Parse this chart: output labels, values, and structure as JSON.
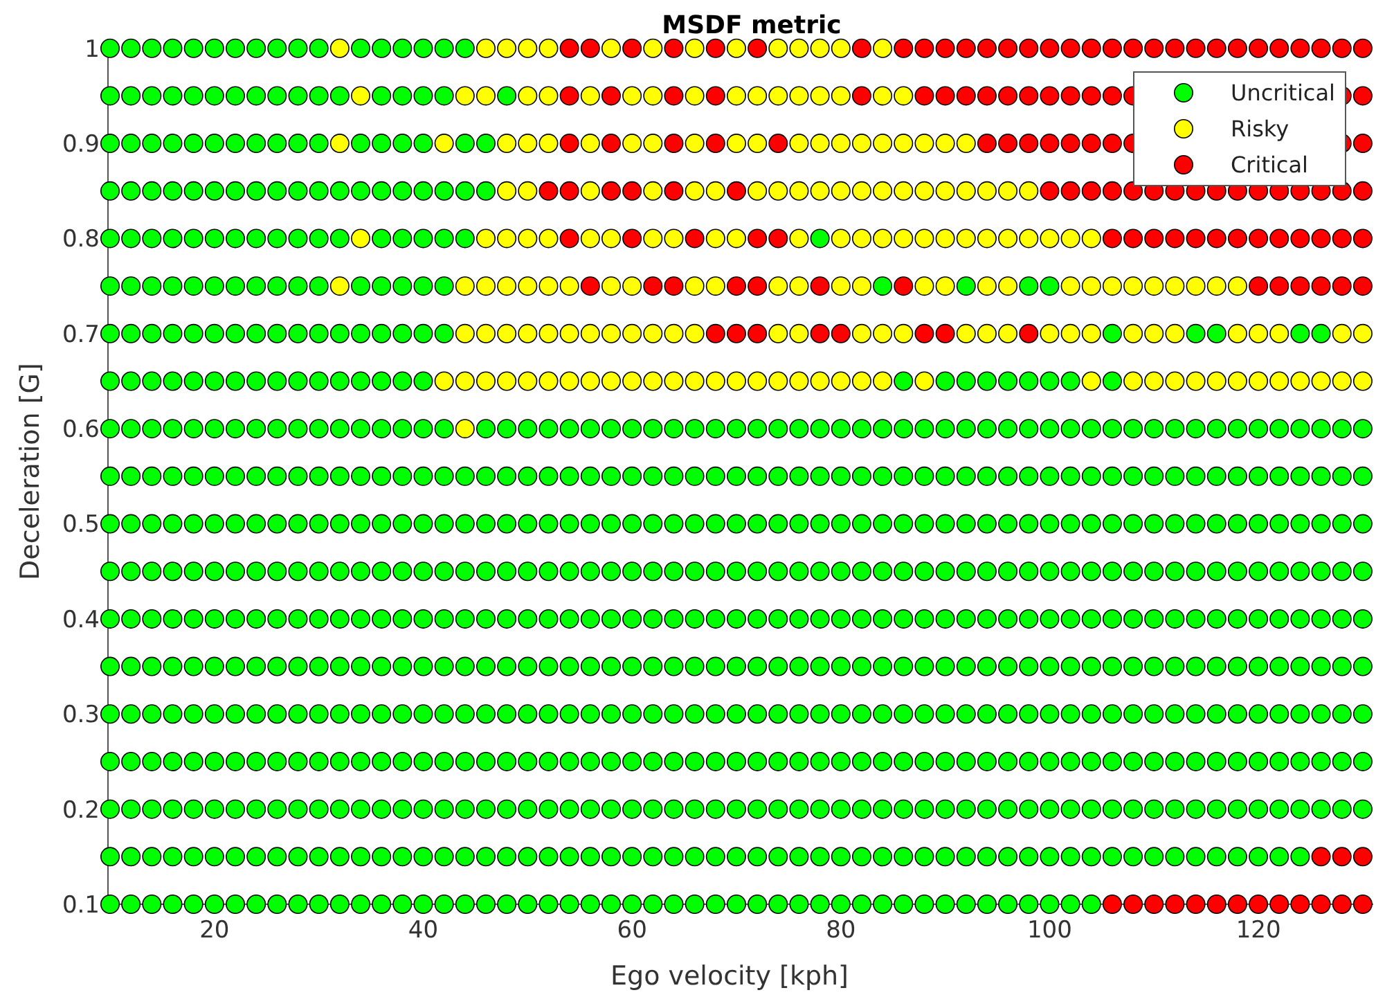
{
  "chart_data": {
    "type": "scatter",
    "title": "MSDF metric",
    "xlabel": "Ego velocity [kph]",
    "ylabel": "Deceleration [G]",
    "xlim": [
      9.8,
      131
    ],
    "xticks": [
      20,
      40,
      60,
      80,
      100,
      120
    ],
    "ylim": [
      0.1,
      1.01
    ],
    "yticks": [
      0.1,
      0.2,
      0.3,
      0.4,
      0.5,
      0.6,
      0.7,
      0.8,
      0.9,
      1
    ],
    "marker": "circle",
    "legend": "top right",
    "series": [
      {
        "name": "Uncritical",
        "color": "#00ff00",
        "x": [
          10,
          12,
          14,
          16,
          18,
          20,
          22,
          24,
          26,
          28,
          30,
          34,
          36,
          38,
          40,
          42,
          44,
          10,
          12,
          14,
          16,
          18,
          20,
          22,
          24,
          26,
          28,
          30,
          32,
          36,
          38,
          40,
          42,
          48,
          10,
          12,
          14,
          16,
          18,
          20,
          22,
          24,
          26,
          28,
          30,
          34,
          36,
          38,
          40,
          44,
          46,
          10,
          12,
          14,
          16,
          18,
          20,
          22,
          24,
          26,
          28,
          30,
          32,
          34,
          36,
          38,
          40,
          42,
          44,
          46,
          10,
          12,
          14,
          16,
          18,
          20,
          22,
          24,
          26,
          28,
          30,
          32,
          36,
          38,
          40,
          42,
          44,
          78,
          10,
          12,
          14,
          16,
          18,
          20,
          22,
          24,
          26,
          28,
          30,
          34,
          36,
          38,
          40,
          42,
          84,
          92,
          98,
          100,
          10,
          12,
          14,
          16,
          18,
          20,
          22,
          24,
          26,
          28,
          30,
          32,
          34,
          36,
          38,
          40,
          42,
          106,
          114,
          116,
          124,
          126,
          10,
          12,
          14,
          16,
          18,
          20,
          22,
          24,
          26,
          28,
          30,
          32,
          34,
          36,
          38,
          40,
          86,
          90,
          92,
          94,
          96,
          98,
          100,
          102,
          106,
          10,
          12,
          14,
          16,
          18,
          20,
          22,
          24,
          26,
          28,
          30,
          32,
          34,
          36,
          38,
          40,
          42,
          46,
          48,
          50,
          52,
          54,
          56,
          58,
          60,
          62,
          64,
          66,
          68,
          70,
          72,
          74,
          76,
          78,
          80,
          82,
          84,
          86,
          88,
          90,
          92,
          94,
          96,
          98,
          100,
          102,
          104,
          106,
          108,
          110,
          112,
          114,
          116,
          118,
          120,
          122,
          124,
          126,
          128,
          130,
          10,
          12,
          14,
          16,
          18,
          20,
          22,
          24,
          26,
          28,
          30,
          32,
          34,
          36,
          38,
          40,
          42,
          44,
          46,
          48,
          50,
          52,
          54,
          56,
          58,
          60,
          62,
          64,
          66,
          68,
          70,
          72,
          74,
          76,
          78,
          80,
          82,
          84,
          86,
          88,
          90,
          92,
          94,
          96,
          98,
          100,
          102,
          104,
          106,
          108,
          110,
          112,
          114,
          116,
          118,
          120,
          122,
          124,
          126,
          128,
          130,
          10,
          12,
          14,
          16,
          18,
          20,
          22,
          24,
          26,
          28,
          30,
          32,
          34,
          36,
          38,
          40,
          42,
          44,
          46,
          48,
          50,
          52,
          54,
          56,
          58,
          60,
          62,
          64,
          66,
          68,
          70,
          72,
          74,
          76,
          78,
          80,
          82,
          84,
          86,
          88,
          90,
          92,
          94,
          96,
          98,
          100,
          102,
          104,
          106,
          108,
          110,
          112,
          114,
          116,
          118,
          120,
          122,
          124,
          126,
          128,
          130,
          10,
          12,
          14,
          16,
          18,
          20,
          22,
          24,
          26,
          28,
          30,
          32,
          34,
          36,
          38,
          40,
          42,
          44,
          46,
          48,
          50,
          52,
          54,
          56,
          58,
          60,
          62,
          64,
          66,
          68,
          70,
          72,
          74,
          76,
          78,
          80,
          82,
          84,
          86,
          88,
          90,
          92,
          94,
          96,
          98,
          100,
          102,
          104,
          106,
          108,
          110,
          112,
          114,
          116,
          118,
          120,
          122,
          124,
          126,
          128,
          130,
          10,
          12,
          14,
          16,
          18,
          20,
          22,
          24,
          26,
          28,
          30,
          32,
          34,
          36,
          38,
          40,
          42,
          44,
          46,
          48,
          50,
          52,
          54,
          56,
          58,
          60,
          62,
          64,
          66,
          68,
          70,
          72,
          74,
          76,
          78,
          80,
          82,
          84,
          86,
          88,
          90,
          92,
          94,
          96,
          98,
          100,
          102,
          104,
          106,
          108,
          110,
          112,
          114,
          116,
          118,
          120,
          122,
          124,
          126,
          128,
          130,
          10,
          12,
          14,
          16,
          18,
          20,
          22,
          24,
          26,
          28,
          30,
          32,
          34,
          36,
          38,
          40,
          42,
          44,
          46,
          48,
          50,
          52,
          54,
          56,
          58,
          60,
          62,
          64,
          66,
          68,
          70,
          72,
          74,
          76,
          78,
          80,
          82,
          84,
          86,
          88,
          90,
          92,
          94,
          96,
          98,
          100,
          102,
          104,
          106,
          108,
          110,
          112,
          114,
          116,
          118,
          120,
          122,
          124,
          126,
          128,
          130,
          10,
          12,
          14,
          16,
          18,
          20,
          22,
          24,
          26,
          28,
          30,
          32,
          34,
          36,
          38,
          40,
          42,
          44,
          46,
          48,
          50,
          52,
          54,
          56,
          58,
          60,
          62,
          64,
          66,
          68,
          70,
          72,
          74,
          76,
          78,
          80,
          82,
          84,
          86,
          88,
          90,
          92,
          94,
          96,
          98,
          100,
          102,
          104,
          106,
          108,
          110,
          112,
          114,
          116,
          118,
          120,
          122,
          124,
          126,
          128,
          130,
          10,
          12,
          14,
          16,
          18,
          20,
          22,
          24,
          26,
          28,
          30,
          32,
          34,
          36,
          38,
          40,
          42,
          44,
          46,
          48,
          50,
          52,
          54,
          56,
          58,
          60,
          62,
          64,
          66,
          68,
          70,
          72,
          74,
          76,
          78,
          80,
          82,
          84,
          86,
          88,
          90,
          92,
          94,
          96,
          98,
          100,
          102,
          104,
          106,
          108,
          110,
          112,
          114,
          116,
          118,
          120,
          122,
          124,
          126,
          128,
          130,
          10,
          12,
          14,
          16,
          18,
          20,
          22,
          24,
          26,
          28,
          30,
          32,
          34,
          36,
          38,
          40,
          42,
          44,
          46,
          48,
          50,
          52,
          54,
          56,
          58,
          60,
          62,
          64,
          66,
          68,
          70,
          72,
          74,
          76,
          78,
          80,
          82,
          84,
          86,
          88,
          90,
          92,
          94,
          96,
          98,
          100,
          102,
          104,
          106,
          108,
          110,
          112,
          114,
          116,
          118,
          120,
          122,
          124,
          126,
          128,
          130,
          10,
          12,
          14,
          16,
          18,
          20,
          22,
          24,
          26,
          28,
          30,
          32,
          34,
          36,
          38,
          40,
          42,
          44,
          46,
          48,
          50,
          52,
          54,
          56,
          58,
          60,
          62,
          64,
          66,
          68,
          70,
          72,
          74,
          76,
          78,
          80,
          82,
          84,
          86,
          88,
          90,
          92,
          94,
          96,
          98,
          100,
          102,
          104,
          106,
          108,
          110,
          112,
          114,
          116,
          118,
          120,
          122,
          124,
          10,
          12,
          14,
          16,
          18,
          20,
          22,
          24,
          26,
          28,
          30,
          32,
          34,
          36,
          38,
          40,
          42,
          44,
          46,
          48,
          50,
          52,
          54,
          56,
          58,
          60,
          62,
          64,
          66,
          68,
          70,
          72,
          74,
          76,
          78,
          80,
          82,
          84,
          86,
          88,
          90,
          92,
          94,
          96,
          98,
          100,
          102,
          104
        ],
        "values": [
          1,
          1,
          1,
          1,
          1,
          1,
          1,
          1,
          1,
          1,
          1,
          1,
          1,
          1,
          1,
          1,
          1,
          0.95,
          0.95,
          0.95,
          0.95,
          0.95,
          0.95,
          0.95,
          0.95,
          0.95,
          0.95,
          0.95,
          0.95,
          0.95,
          0.95,
          0.95,
          0.95,
          0.95,
          0.9,
          0.9,
          0.9,
          0.9,
          0.9,
          0.9,
          0.9,
          0.9,
          0.9,
          0.9,
          0.9,
          0.9,
          0.9,
          0.9,
          0.9,
          0.9,
          0.9,
          0.85,
          0.85,
          0.85,
          0.85,
          0.85,
          0.85,
          0.85,
          0.85,
          0.85,
          0.85,
          0.85,
          0.85,
          0.85,
          0.85,
          0.85,
          0.85,
          0.85,
          0.85,
          0.85,
          0.8,
          0.8,
          0.8,
          0.8,
          0.8,
          0.8,
          0.8,
          0.8,
          0.8,
          0.8,
          0.8,
          0.8,
          0.8,
          0.8,
          0.8,
          0.8,
          0.8,
          0.8,
          0.75,
          0.75,
          0.75,
          0.75,
          0.75,
          0.75,
          0.75,
          0.75,
          0.75,
          0.75,
          0.75,
          0.75,
          0.75,
          0.75,
          0.75,
          0.75,
          0.75,
          0.75,
          0.75,
          0.75,
          0.7,
          0.7,
          0.7,
          0.7,
          0.7,
          0.7,
          0.7,
          0.7,
          0.7,
          0.7,
          0.7,
          0.7,
          0.7,
          0.7,
          0.7,
          0.7,
          0.7,
          0.7,
          0.7,
          0.7,
          0.7,
          0.7,
          0.65,
          0.65,
          0.65,
          0.65,
          0.65,
          0.65,
          0.65,
          0.65,
          0.65,
          0.65,
          0.65,
          0.65,
          0.65,
          0.65,
          0.65,
          0.65,
          0.65,
          0.65,
          0.65,
          0.65,
          0.65,
          0.65,
          0.65,
          0.65,
          0.65,
          0.6,
          0.6,
          0.6,
          0.6,
          0.6,
          0.6,
          0.6,
          0.6,
          0.6,
          0.6,
          0.6,
          0.6,
          0.6,
          0.6,
          0.6,
          0.6,
          0.6,
          0.6,
          0.6,
          0.6,
          0.6,
          0.6,
          0.6,
          0.6,
          0.6,
          0.6,
          0.6,
          0.6,
          0.6,
          0.6,
          0.6,
          0.6,
          0.6,
          0.6,
          0.6,
          0.6,
          0.6,
          0.6,
          0.6,
          0.6,
          0.6,
          0.6,
          0.6,
          0.6,
          0.6,
          0.6,
          0.6,
          0.6,
          0.6,
          0.6,
          0.6,
          0.6,
          0.6,
          0.6,
          0.6,
          0.6,
          0.6,
          0.6,
          0.6,
          0.6,
          0.55,
          0.55,
          0.55,
          0.55,
          0.55,
          0.55,
          0.55,
          0.55,
          0.55,
          0.55,
          0.55,
          0.55,
          0.55,
          0.55,
          0.55,
          0.55,
          0.55,
          0.55,
          0.55,
          0.55,
          0.55,
          0.55,
          0.55,
          0.55,
          0.55,
          0.55,
          0.55,
          0.55,
          0.55,
          0.55,
          0.55,
          0.55,
          0.55,
          0.55,
          0.55,
          0.55,
          0.55,
          0.55,
          0.55,
          0.55,
          0.55,
          0.55,
          0.55,
          0.55,
          0.55,
          0.55,
          0.55,
          0.55,
          0.55,
          0.55,
          0.55,
          0.55,
          0.55,
          0.55,
          0.55,
          0.55,
          0.55,
          0.55,
          0.55,
          0.55,
          0.55,
          0.5,
          0.5,
          0.5,
          0.5,
          0.5,
          0.5,
          0.5,
          0.5,
          0.5,
          0.5,
          0.5,
          0.5,
          0.5,
          0.5,
          0.5,
          0.5,
          0.5,
          0.5,
          0.5,
          0.5,
          0.5,
          0.5,
          0.5,
          0.5,
          0.5,
          0.5,
          0.5,
          0.5,
          0.5,
          0.5,
          0.5,
          0.5,
          0.5,
          0.5,
          0.5,
          0.5,
          0.5,
          0.5,
          0.5,
          0.5,
          0.5,
          0.5,
          0.5,
          0.5,
          0.5,
          0.5,
          0.5,
          0.5,
          0.5,
          0.5,
          0.5,
          0.5,
          0.5,
          0.5,
          0.5,
          0.5,
          0.5,
          0.5,
          0.5,
          0.5,
          0.5,
          0.45,
          0.45,
          0.45,
          0.45,
          0.45,
          0.45,
          0.45,
          0.45,
          0.45,
          0.45,
          0.45,
          0.45,
          0.45,
          0.45,
          0.45,
          0.45,
          0.45,
          0.45,
          0.45,
          0.45,
          0.45,
          0.45,
          0.45,
          0.45,
          0.45,
          0.45,
          0.45,
          0.45,
          0.45,
          0.45,
          0.45,
          0.45,
          0.45,
          0.45,
          0.45,
          0.45,
          0.45,
          0.45,
          0.45,
          0.45,
          0.45,
          0.45,
          0.45,
          0.45,
          0.45,
          0.45,
          0.45,
          0.45,
          0.45,
          0.45,
          0.45,
          0.45,
          0.45,
          0.45,
          0.45,
          0.45,
          0.45,
          0.45,
          0.45,
          0.45,
          0.45,
          0.4,
          0.4,
          0.4,
          0.4,
          0.4,
          0.4,
          0.4,
          0.4,
          0.4,
          0.4,
          0.4,
          0.4,
          0.4,
          0.4,
          0.4,
          0.4,
          0.4,
          0.4,
          0.4,
          0.4,
          0.4,
          0.4,
          0.4,
          0.4,
          0.4,
          0.4,
          0.4,
          0.4,
          0.4,
          0.4,
          0.4,
          0.4,
          0.4,
          0.4,
          0.4,
          0.4,
          0.4,
          0.4,
          0.4,
          0.4,
          0.4,
          0.4,
          0.4,
          0.4,
          0.4,
          0.4,
          0.4,
          0.4,
          0.4,
          0.4,
          0.4,
          0.4,
          0.4,
          0.4,
          0.4,
          0.4,
          0.4,
          0.4,
          0.4,
          0.4,
          0.4,
          0.35,
          0.35,
          0.35,
          0.35,
          0.35,
          0.35,
          0.35,
          0.35,
          0.35,
          0.35,
          0.35,
          0.35,
          0.35,
          0.35,
          0.35,
          0.35,
          0.35,
          0.35,
          0.35,
          0.35,
          0.35,
          0.35,
          0.35,
          0.35,
          0.35,
          0.35,
          0.35,
          0.35,
          0.35,
          0.35,
          0.35,
          0.35,
          0.35,
          0.35,
          0.35,
          0.35,
          0.35,
          0.35,
          0.35,
          0.35,
          0.35,
          0.35,
          0.35,
          0.35,
          0.35,
          0.35,
          0.35,
          0.35,
          0.35,
          0.35,
          0.35,
          0.35,
          0.35,
          0.35,
          0.35,
          0.35,
          0.35,
          0.35,
          0.35,
          0.35,
          0.35,
          0.3,
          0.3,
          0.3,
          0.3,
          0.3,
          0.3,
          0.3,
          0.3,
          0.3,
          0.3,
          0.3,
          0.3,
          0.3,
          0.3,
          0.3,
          0.3,
          0.3,
          0.3,
          0.3,
          0.3,
          0.3,
          0.3,
          0.3,
          0.3,
          0.3,
          0.3,
          0.3,
          0.3,
          0.3,
          0.3,
          0.3,
          0.3,
          0.3,
          0.3,
          0.3,
          0.3,
          0.3,
          0.3,
          0.3,
          0.3,
          0.3,
          0.3,
          0.3,
          0.3,
          0.3,
          0.3,
          0.3,
          0.3,
          0.3,
          0.3,
          0.3,
          0.3,
          0.3,
          0.3,
          0.3,
          0.3,
          0.3,
          0.3,
          0.3,
          0.3,
          0.3,
          0.25,
          0.25,
          0.25,
          0.25,
          0.25,
          0.25,
          0.25,
          0.25,
          0.25,
          0.25,
          0.25,
          0.25,
          0.25,
          0.25,
          0.25,
          0.25,
          0.25,
          0.25,
          0.25,
          0.25,
          0.25,
          0.25,
          0.25,
          0.25,
          0.25,
          0.25,
          0.25,
          0.25,
          0.25,
          0.25,
          0.25,
          0.25,
          0.25,
          0.25,
          0.25,
          0.25,
          0.25,
          0.25,
          0.25,
          0.25,
          0.25,
          0.25,
          0.25,
          0.25,
          0.25,
          0.25,
          0.25,
          0.25,
          0.25,
          0.25,
          0.25,
          0.25,
          0.25,
          0.25,
          0.25,
          0.25,
          0.25,
          0.25,
          0.25,
          0.25,
          0.25,
          0.2,
          0.2,
          0.2,
          0.2,
          0.2,
          0.2,
          0.2,
          0.2,
          0.2,
          0.2,
          0.2,
          0.2,
          0.2,
          0.2,
          0.2,
          0.2,
          0.2,
          0.2,
          0.2,
          0.2,
          0.2,
          0.2,
          0.2,
          0.2,
          0.2,
          0.2,
          0.2,
          0.2,
          0.2,
          0.2,
          0.2,
          0.2,
          0.2,
          0.2,
          0.2,
          0.2,
          0.2,
          0.2,
          0.2,
          0.2,
          0.2,
          0.2,
          0.2,
          0.2,
          0.2,
          0.2,
          0.2,
          0.2,
          0.2,
          0.2,
          0.2,
          0.2,
          0.2,
          0.2,
          0.2,
          0.2,
          0.2,
          0.2,
          0.2,
          0.2,
          0.2,
          0.15,
          0.15,
          0.15,
          0.15,
          0.15,
          0.15,
          0.15,
          0.15,
          0.15,
          0.15,
          0.15,
          0.15,
          0.15,
          0.15,
          0.15,
          0.15,
          0.15,
          0.15,
          0.15,
          0.15,
          0.15,
          0.15,
          0.15,
          0.15,
          0.15,
          0.15,
          0.15,
          0.15,
          0.15,
          0.15,
          0.15,
          0.15,
          0.15,
          0.15,
          0.15,
          0.15,
          0.15,
          0.15,
          0.15,
          0.15,
          0.15,
          0.15,
          0.15,
          0.15,
          0.15,
          0.15,
          0.15,
          0.15,
          0.15,
          0.15,
          0.15,
          0.15,
          0.15,
          0.15,
          0.15,
          0.15,
          0.15,
          0.15,
          0.1,
          0.1,
          0.1,
          0.1,
          0.1,
          0.1,
          0.1,
          0.1,
          0.1,
          0.1,
          0.1,
          0.1,
          0.1,
          0.1,
          0.1,
          0.1,
          0.1,
          0.1,
          0.1,
          0.1,
          0.1,
          0.1,
          0.1,
          0.1,
          0.1,
          0.1,
          0.1,
          0.1,
          0.1,
          0.1,
          0.1,
          0.1,
          0.1,
          0.1,
          0.1,
          0.1,
          0.1,
          0.1,
          0.1,
          0.1,
          0.1,
          0.1,
          0.1,
          0.1,
          0.1,
          0.1,
          0.1,
          0.1
        ]
      },
      {
        "name": "Risky",
        "color": "#ffff00",
        "x": [
          32,
          46,
          48,
          50,
          52,
          58,
          62,
          66,
          70,
          74,
          76,
          78,
          80,
          84,
          34,
          44,
          46,
          50,
          52,
          56,
          60,
          62,
          66,
          70,
          72,
          74,
          76,
          78,
          80,
          84,
          86,
          32,
          42,
          48,
          50,
          52,
          56,
          60,
          62,
          66,
          70,
          72,
          76,
          78,
          80,
          82,
          84,
          86,
          88,
          90,
          92,
          48,
          50,
          56,
          62,
          66,
          68,
          72,
          74,
          76,
          78,
          80,
          82,
          84,
          86,
          88,
          90,
          92,
          94,
          96,
          98,
          34,
          46,
          48,
          50,
          52,
          56,
          58,
          62,
          64,
          68,
          70,
          76,
          80,
          82,
          84,
          86,
          88,
          90,
          92,
          94,
          96,
          98,
          100,
          102,
          104,
          32,
          44,
          46,
          48,
          50,
          52,
          54,
          58,
          60,
          66,
          68,
          74,
          76,
          80,
          82,
          88,
          90,
          94,
          96,
          102,
          104,
          106,
          108,
          110,
          112,
          114,
          116,
          118,
          44,
          46,
          48,
          50,
          52,
          54,
          56,
          58,
          60,
          62,
          64,
          66,
          74,
          76,
          82,
          84,
          86,
          92,
          94,
          96,
          100,
          102,
          104,
          108,
          110,
          112,
          118,
          120,
          122,
          128,
          130,
          42,
          44,
          46,
          48,
          50,
          52,
          54,
          56,
          58,
          60,
          62,
          64,
          66,
          68,
          70,
          72,
          74,
          76,
          78,
          80,
          82,
          84,
          88,
          104,
          108,
          110,
          112,
          114,
          116,
          118,
          120,
          122,
          124,
          126,
          128,
          130,
          44
        ],
        "values": [
          1,
          1,
          1,
          1,
          1,
          1,
          1,
          1,
          1,
          1,
          1,
          1,
          1,
          1,
          0.95,
          0.95,
          0.95,
          0.95,
          0.95,
          0.95,
          0.95,
          0.95,
          0.95,
          0.95,
          0.95,
          0.95,
          0.95,
          0.95,
          0.95,
          0.95,
          0.95,
          0.9,
          0.9,
          0.9,
          0.9,
          0.9,
          0.9,
          0.9,
          0.9,
          0.9,
          0.9,
          0.9,
          0.9,
          0.9,
          0.9,
          0.9,
          0.9,
          0.9,
          0.9,
          0.9,
          0.9,
          0.85,
          0.85,
          0.85,
          0.85,
          0.85,
          0.85,
          0.85,
          0.85,
          0.85,
          0.85,
          0.85,
          0.85,
          0.85,
          0.85,
          0.85,
          0.85,
          0.85,
          0.85,
          0.85,
          0.85,
          0.8,
          0.8,
          0.8,
          0.8,
          0.8,
          0.8,
          0.8,
          0.8,
          0.8,
          0.8,
          0.8,
          0.8,
          0.8,
          0.8,
          0.8,
          0.8,
          0.8,
          0.8,
          0.8,
          0.8,
          0.8,
          0.8,
          0.8,
          0.8,
          0.8,
          0.75,
          0.75,
          0.75,
          0.75,
          0.75,
          0.75,
          0.75,
          0.75,
          0.75,
          0.75,
          0.75,
          0.75,
          0.75,
          0.75,
          0.75,
          0.75,
          0.75,
          0.75,
          0.75,
          0.75,
          0.75,
          0.75,
          0.75,
          0.75,
          0.75,
          0.75,
          0.75,
          0.75,
          0.7,
          0.7,
          0.7,
          0.7,
          0.7,
          0.7,
          0.7,
          0.7,
          0.7,
          0.7,
          0.7,
          0.7,
          0.7,
          0.7,
          0.7,
          0.7,
          0.7,
          0.7,
          0.7,
          0.7,
          0.7,
          0.7,
          0.7,
          0.7,
          0.7,
          0.7,
          0.7,
          0.7,
          0.7,
          0.7,
          0.7,
          0.65,
          0.65,
          0.65,
          0.65,
          0.65,
          0.65,
          0.65,
          0.65,
          0.65,
          0.65,
          0.65,
          0.65,
          0.65,
          0.65,
          0.65,
          0.65,
          0.65,
          0.65,
          0.65,
          0.65,
          0.65,
          0.65,
          0.65,
          0.65,
          0.65,
          0.65,
          0.65,
          0.65,
          0.65,
          0.65,
          0.65,
          0.65,
          0.65,
          0.65,
          0.65,
          0.65,
          0.6
        ]
      },
      {
        "name": "Critical",
        "color": "#ff0000",
        "x": [
          54,
          56,
          60,
          64,
          68,
          72,
          82,
          86,
          88,
          90,
          92,
          94,
          96,
          98,
          100,
          102,
          104,
          106,
          108,
          110,
          112,
          114,
          116,
          118,
          120,
          122,
          124,
          126,
          128,
          130,
          54,
          58,
          64,
          68,
          82,
          88,
          90,
          92,
          94,
          96,
          98,
          100,
          102,
          104,
          106,
          108,
          128,
          130,
          54,
          58,
          64,
          68,
          74,
          94,
          96,
          98,
          100,
          102,
          104,
          106,
          108,
          128,
          130,
          52,
          54,
          58,
          60,
          64,
          70,
          100,
          102,
          104,
          106,
          108,
          110,
          112,
          114,
          116,
          118,
          120,
          122,
          124,
          126,
          128,
          130,
          54,
          60,
          66,
          72,
          74,
          106,
          108,
          110,
          112,
          114,
          116,
          118,
          120,
          122,
          124,
          126,
          128,
          130,
          56,
          62,
          64,
          70,
          72,
          78,
          86,
          120,
          122,
          124,
          126,
          128,
          130,
          68,
          70,
          72,
          78,
          80,
          88,
          90,
          98,
          126,
          128,
          130,
          106,
          108,
          110,
          112,
          114,
          116,
          118,
          120,
          122,
          124,
          126,
          128,
          130
        ],
        "values": [
          1,
          1,
          1,
          1,
          1,
          1,
          1,
          1,
          1,
          1,
          1,
          1,
          1,
          1,
          1,
          1,
          1,
          1,
          1,
          1,
          1,
          1,
          1,
          1,
          1,
          1,
          1,
          1,
          1,
          1,
          0.95,
          0.95,
          0.95,
          0.95,
          0.95,
          0.95,
          0.95,
          0.95,
          0.95,
          0.95,
          0.95,
          0.95,
          0.95,
          0.95,
          0.95,
          0.95,
          0.95,
          0.95,
          0.9,
          0.9,
          0.9,
          0.9,
          0.9,
          0.9,
          0.9,
          0.9,
          0.9,
          0.9,
          0.9,
          0.9,
          0.9,
          0.9,
          0.9,
          0.85,
          0.85,
          0.85,
          0.85,
          0.85,
          0.85,
          0.85,
          0.85,
          0.85,
          0.85,
          0.85,
          0.85,
          0.85,
          0.85,
          0.85,
          0.85,
          0.85,
          0.85,
          0.85,
          0.85,
          0.85,
          0.85,
          0.8,
          0.8,
          0.8,
          0.8,
          0.8,
          0.8,
          0.8,
          0.8,
          0.8,
          0.8,
          0.8,
          0.8,
          0.8,
          0.8,
          0.8,
          0.8,
          0.8,
          0.8,
          0.75,
          0.75,
          0.75,
          0.75,
          0.75,
          0.75,
          0.75,
          0.75,
          0.75,
          0.75,
          0.75,
          0.75,
          0.75,
          0.7,
          0.7,
          0.7,
          0.7,
          0.7,
          0.7,
          0.7,
          0.7,
          0.15,
          0.15,
          0.15,
          0.1,
          0.1,
          0.1,
          0.1,
          0.1,
          0.1,
          0.1,
          0.1,
          0.1,
          0.1,
          0.1,
          0.1,
          0.1
        ]
      }
    ]
  }
}
